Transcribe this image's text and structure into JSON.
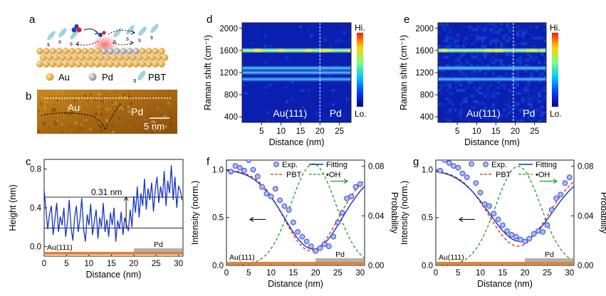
{
  "panels": {
    "a": {
      "letter": "a",
      "legend": [
        "Au",
        "Pd",
        "PBT"
      ],
      "s_label": "s",
      "colors": {
        "au": "#e0a845",
        "pd": "#a8a8a8",
        "pbt": "#9fd4de",
        "glow": "#f27a7a"
      }
    },
    "b": {
      "letter": "b",
      "labels": [
        "Au",
        "Pd"
      ],
      "scale_bar": "5 nm"
    },
    "c": {
      "letter": "c"
    },
    "d": {
      "letter": "d",
      "region_left": "Au(111)",
      "region_right": "Pd",
      "cb_hi": "Hi.",
      "cb_lo": "Lo."
    },
    "e": {
      "letter": "e",
      "region_left": "Au(111)",
      "region_right": "Pd",
      "cb_hi": "Hi.",
      "cb_lo": "Lo."
    },
    "f": {
      "letter": "f",
      "region_left": "Au(111)",
      "region_right": "Pd",
      "legend": [
        "Exp.",
        "Fitting",
        "PBT",
        "•OH"
      ]
    },
    "g": {
      "letter": "g",
      "region_left": "Au(111)",
      "region_right": "Pd",
      "legend": [
        "Exp.",
        "Fitting",
        "PBT",
        "•OH"
      ]
    }
  },
  "chart_data": [
    {
      "id": "c",
      "type": "line",
      "xlabel": "Distance (nm)",
      "ylabel": "Height (nm)",
      "xlim": [
        0,
        31
      ],
      "ylim": [
        -0.1,
        0.9
      ],
      "xticks": [
        0,
        5,
        10,
        15,
        20,
        25,
        30
      ],
      "yticks": [
        0.0,
        0.4,
        0.8
      ],
      "annotation": "0.31 nm",
      "reference_lines": [
        0.19,
        0.51
      ],
      "x": [
        0,
        0.4,
        0.8,
        1.2,
        1.6,
        2.0,
        2.4,
        2.8,
        3.2,
        3.6,
        4.0,
        4.4,
        4.8,
        5.2,
        5.6,
        6.0,
        6.4,
        6.8,
        7.2,
        7.6,
        8.0,
        8.4,
        8.8,
        9.2,
        9.6,
        10.0,
        10.4,
        10.8,
        11.2,
        11.6,
        12.0,
        12.4,
        12.8,
        13.2,
        13.6,
        14.0,
        14.4,
        14.8,
        15.2,
        15.6,
        16.0,
        16.4,
        16.8,
        17.2,
        17.6,
        18.0,
        18.4,
        18.8,
        19.2,
        19.6,
        20.0,
        20.4,
        20.8,
        21.2,
        21.6,
        22.0,
        22.4,
        22.8,
        23.2,
        23.6,
        24.0,
        24.4,
        24.8,
        25.2,
        25.6,
        26.0,
        26.4,
        26.8,
        27.2,
        27.6,
        28.0,
        28.4,
        28.8,
        29.2,
        29.6,
        30.0,
        30.4,
        30.8
      ],
      "y": [
        0.58,
        0.38,
        0.18,
        0.33,
        0.42,
        0.12,
        0.28,
        0.45,
        0.15,
        0.31,
        0.22,
        0.4,
        0.1,
        0.25,
        0.48,
        0.2,
        0.06,
        0.3,
        0.42,
        0.15,
        0.28,
        0.5,
        0.18,
        0.05,
        0.33,
        0.22,
        0.44,
        0.12,
        0.26,
        0.38,
        0.08,
        0.3,
        0.2,
        0.45,
        0.15,
        0.28,
        0.1,
        0.35,
        0.22,
        0.4,
        0.05,
        0.27,
        0.18,
        0.36,
        0.12,
        0.3,
        0.22,
        0.16,
        0.38,
        0.2,
        0.52,
        0.35,
        0.62,
        0.3,
        0.55,
        0.42,
        0.7,
        0.38,
        0.6,
        0.48,
        0.66,
        0.36,
        0.58,
        0.72,
        0.45,
        0.62,
        0.5,
        0.78,
        0.42,
        0.68,
        0.55,
        0.84,
        0.48,
        0.72,
        0.4,
        0.62,
        0.58,
        0.48
      ],
      "region_labels": [
        "Au(111)",
        "Pd"
      ]
    },
    {
      "id": "d",
      "type": "heatmap",
      "xlabel": "Distance (nm)",
      "ylabel": "Raman shift (cm⁻¹)",
      "xlim": [
        0,
        28
      ],
      "ylim": [
        300,
        2100
      ],
      "xticks": [
        5,
        10,
        15,
        20,
        25
      ],
      "yticks": [
        400,
        800,
        1200,
        1600,
        2000
      ],
      "boundary_x": 20,
      "bands": [
        {
          "shift": 1600,
          "strength": 1.0
        },
        {
          "shift": 1280,
          "strength": 0.45
        },
        {
          "shift": 1200,
          "strength": 0.35
        },
        {
          "shift": 1080,
          "strength": 0.25
        }
      ]
    },
    {
      "id": "e",
      "type": "heatmap",
      "xlabel": "Distance (nm)",
      "ylabel": "Raman shift (cm⁻¹)",
      "xlim": [
        0,
        28
      ],
      "ylim": [
        300,
        2100
      ],
      "xticks": [
        5,
        10,
        15,
        20,
        25
      ],
      "yticks": [
        400,
        800,
        1200,
        1600,
        2000
      ],
      "boundary_x": 19.5,
      "bands": [
        {
          "shift": 1600,
          "strength": 0.9
        },
        {
          "shift": 1280,
          "strength": 0.55
        },
        {
          "shift": 1080,
          "strength": 0.3
        }
      ]
    },
    {
      "id": "f",
      "type": "scatter",
      "xlabel": "Distance (nm)",
      "ylabel": "Intensity (norm.)",
      "y2label": "Probability",
      "xlim": [
        0,
        31
      ],
      "ylim": [
        0,
        1.1
      ],
      "y2lim": [
        0,
        0.085
      ],
      "xticks": [
        0,
        5,
        10,
        15,
        20,
        25,
        30
      ],
      "yticks": [
        0.0,
        0.5,
        1.0
      ],
      "y2ticks": [
        0.0,
        0.04,
        0.08
      ],
      "series": [
        {
          "name": "Exp.",
          "x": [
            1,
            2,
            3,
            4,
            5,
            6,
            7,
            8,
            9,
            10,
            11,
            12,
            13,
            14,
            15,
            16,
            17,
            18,
            19,
            20,
            21,
            22,
            23,
            24,
            25,
            26,
            27,
            28,
            29,
            30
          ],
          "y": [
            0.98,
            1.04,
            1.02,
            0.99,
            1.1,
            1.0,
            0.93,
            0.82,
            0.75,
            0.72,
            0.8,
            0.68,
            0.62,
            0.58,
            0.45,
            0.35,
            0.3,
            0.25,
            0.2,
            0.15,
            0.18,
            0.22,
            0.2,
            0.3,
            0.45,
            0.55,
            0.7,
            0.72,
            0.82,
            0.85
          ]
        },
        {
          "name": "Fitting",
          "curve": "gaussian-dip",
          "center": 19.5,
          "sigma": 6.5,
          "min": 0.17
        },
        {
          "name": "PBT",
          "curve": "gaussian-dip",
          "center": 19.0,
          "sigma": 6.0,
          "min": 0.15
        },
        {
          "name": "•OH",
          "curve": "gaussian-peak",
          "center": 19.5,
          "sigma": 5.0,
          "peak": 0.082
        }
      ],
      "region_labels": [
        "Au(111)",
        "Pd"
      ]
    },
    {
      "id": "g",
      "type": "scatter",
      "xlabel": "Distance (nm)",
      "ylabel": "Intensity (norm.)",
      "y2label": "Probability",
      "xlim": [
        0,
        31
      ],
      "ylim": [
        0,
        1.1
      ],
      "y2lim": [
        0,
        0.085
      ],
      "xticks": [
        0,
        5,
        10,
        15,
        20,
        25,
        30
      ],
      "yticks": [
        0.0,
        0.5,
        1.0
      ],
      "y2ticks": [
        0.0,
        0.04,
        0.08
      ],
      "series": [
        {
          "name": "Exp.",
          "x": [
            1,
            2,
            3,
            4,
            5,
            6,
            7,
            8,
            9,
            10,
            11,
            12,
            13,
            14,
            15,
            16,
            17,
            18,
            19,
            20,
            21,
            22,
            23,
            24,
            25,
            26,
            27,
            28,
            29,
            30
          ],
          "y": [
            0.99,
            1.1,
            1.07,
            1.04,
            1.02,
            0.96,
            0.92,
            1.06,
            0.86,
            0.76,
            0.64,
            0.62,
            0.54,
            0.48,
            0.42,
            0.36,
            0.32,
            0.3,
            0.27,
            0.25,
            0.28,
            0.33,
            0.36,
            0.35,
            0.42,
            0.58,
            0.7,
            0.74,
            0.86,
            0.92
          ]
        },
        {
          "name": "Fitting",
          "curve": "gaussian-dip",
          "center": 19.0,
          "sigma": 7.0,
          "min": 0.25
        },
        {
          "name": "PBT",
          "curve": "gaussian-dip",
          "center": 18.5,
          "sigma": 6.5,
          "min": 0.2
        },
        {
          "name": "•OH",
          "curve": "gaussian-peak",
          "center": 18.5,
          "sigma": 5.0,
          "peak": 0.08
        }
      ],
      "region_labels": [
        "Au(111)",
        "Pd"
      ]
    }
  ]
}
